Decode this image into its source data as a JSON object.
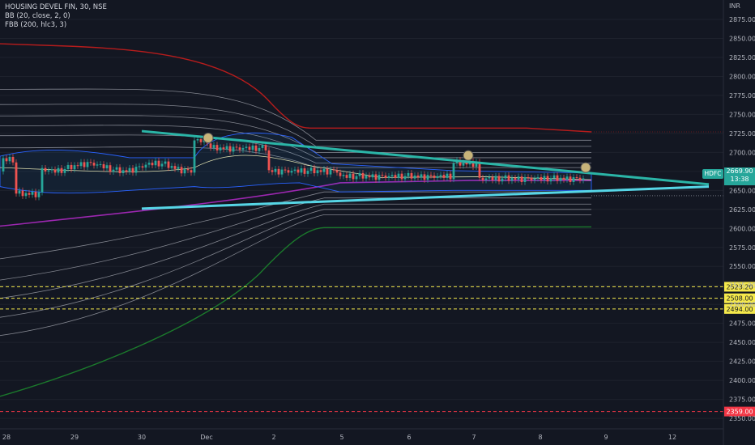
{
  "legend": {
    "symbol": "HOUSING DEVEL FIN, 30, NSE",
    "bb": "BB (20, close, 2, 0)",
    "fbb": "FBB (200, hlc3, 3)"
  },
  "currency": "INR",
  "ticker_label": "HDFC",
  "last_price": "2669.90",
  "countdown": "13:38",
  "chart_data": {
    "type": "candlestick",
    "y_ticks": [
      "2875.00",
      "2850.00",
      "2825.00",
      "2800.00",
      "2775.00",
      "2750.00",
      "2725.00",
      "2700.00",
      "2675.00",
      "2650.00",
      "2625.00",
      "2600.00",
      "2575.00",
      "2550.00",
      "2525.00",
      "2500.00",
      "2475.00",
      "2450.00",
      "2425.00",
      "2400.00",
      "2375.00",
      "2350.00"
    ],
    "ylim": [
      2345,
      2885
    ],
    "x_ticks": [
      "28",
      "29",
      "30",
      "Dec",
      "2",
      "5",
      "6",
      "7",
      "8",
      "9",
      "12"
    ],
    "horizontal_levels": [
      {
        "value": 2523.2,
        "label": "2523.20",
        "color": "#f5e94b"
      },
      {
        "value": 2508.0,
        "label": "2508.00",
        "color": "#f5e94b"
      },
      {
        "value": 2494.0,
        "label": "2494.00",
        "color": "#f5e94b"
      },
      {
        "value": 2359.0,
        "label": "2359.00",
        "color": "#f23645"
      }
    ],
    "colors": {
      "up": "#26a69a",
      "down": "#ef5350",
      "trendline": "#4dd0e1",
      "upper_band": "#b71c1c",
      "lower_band": "#1b7a2c",
      "basis": "#9c27b0",
      "bb": "#2962ff"
    }
  }
}
